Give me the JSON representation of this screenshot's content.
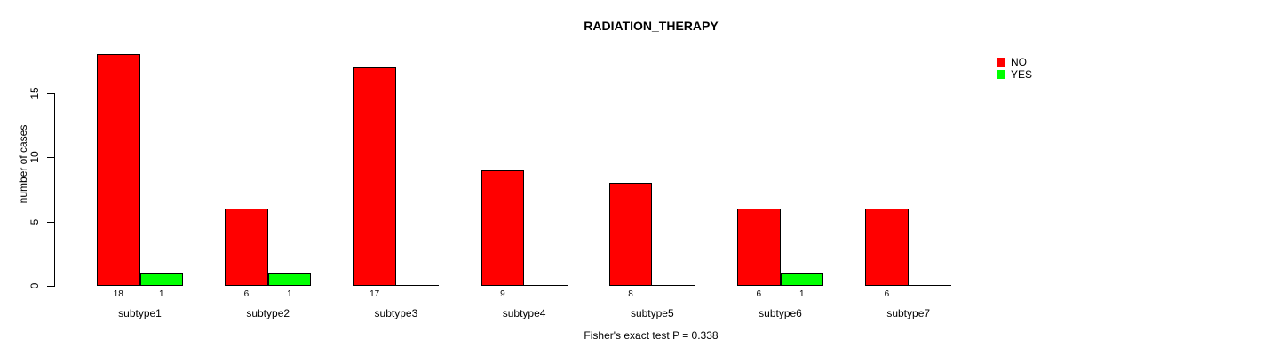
{
  "chart_data": {
    "type": "bar",
    "title": "RADIATION_THERAPY",
    "xlabel": "",
    "ylabel": "number of cases",
    "categories": [
      "subtype1",
      "subtype2",
      "subtype3",
      "subtype4",
      "subtype5",
      "subtype6",
      "subtype7"
    ],
    "series": [
      {
        "name": "NO",
        "color": "#ff0000",
        "values": [
          18,
          6,
          17,
          9,
          8,
          6,
          6
        ]
      },
      {
        "name": "YES",
        "color": "#00ff00",
        "values": [
          1,
          1,
          0,
          0,
          0,
          1,
          0
        ]
      }
    ],
    "yticks": [
      0,
      5,
      10,
      15
    ],
    "ylim": [
      0,
      18.6
    ],
    "grid": false,
    "legend_position": "top-right",
    "bar_value_labels_shown_for_nonzero_only": true,
    "annotation": "Fisher's exact test P = 0.338",
    "colors": {
      "no": "#ff0000",
      "yes": "#00ff00",
      "axis": "#000000",
      "text": "#000000",
      "background": "#ffffff"
    }
  }
}
